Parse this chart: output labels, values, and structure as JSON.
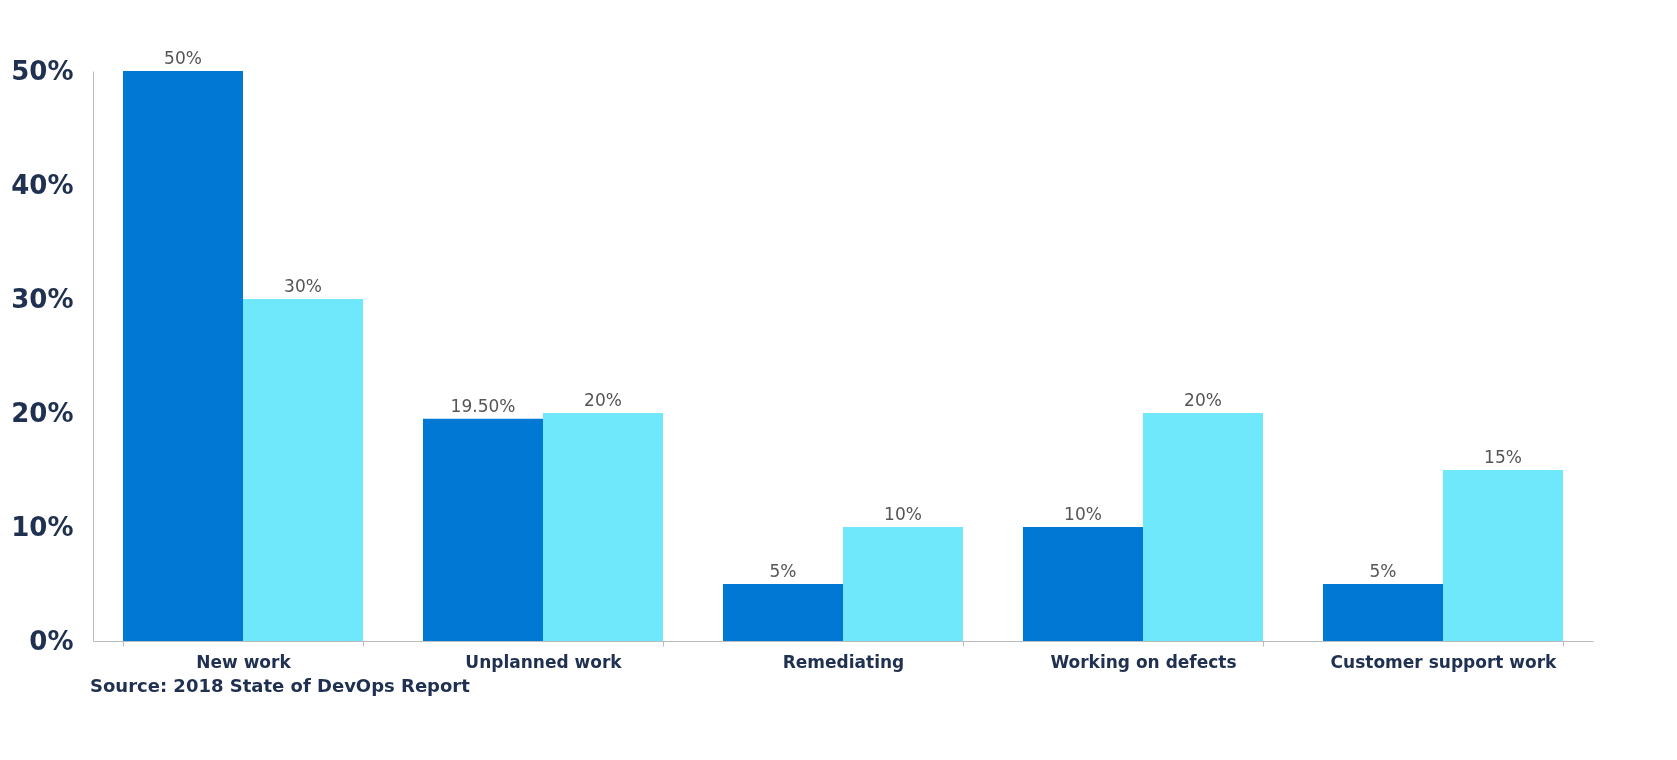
{
  "chart_data": {
    "type": "bar",
    "categories": [
      "New work",
      "Unplanned work",
      "Remediating",
      "Working on defects",
      "Customer support work"
    ],
    "series": [
      {
        "color": "#0078d4",
        "values": [
          50,
          19.5,
          5,
          10,
          5
        ],
        "value_labels": [
          "50%",
          "19.50%",
          "5%",
          "10%",
          "5%"
        ]
      },
      {
        "color": "#70e8fc",
        "values": [
          30,
          20,
          10,
          20,
          15
        ],
        "value_labels": [
          "30%",
          "20%",
          "10%",
          "20%",
          "15%"
        ]
      }
    ],
    "ylim": [
      0,
      50
    ],
    "yticks": [
      {
        "value": 0,
        "label": "0%"
      },
      {
        "value": 10,
        "label": "10%"
      },
      {
        "value": 20,
        "label": "20%"
      },
      {
        "value": 30,
        "label": "30%"
      },
      {
        "value": 40,
        "label": "40%"
      },
      {
        "value": 50,
        "label": "50%"
      }
    ],
    "annotations": [
      "Source: 2018 State of DevOps Report"
    ]
  }
}
